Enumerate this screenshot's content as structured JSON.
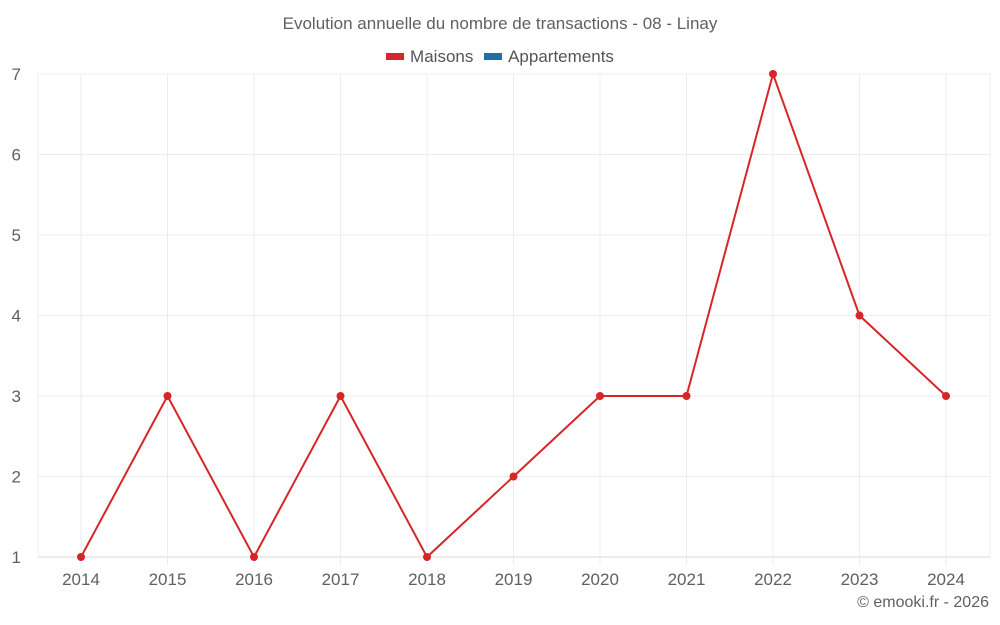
{
  "chart_data": {
    "type": "line",
    "title": "Evolution annuelle du nombre de transactions - 08 - Linay",
    "categories": [
      "2014",
      "2015",
      "2016",
      "2017",
      "2018",
      "2019",
      "2020",
      "2021",
      "2022",
      "2023",
      "2024"
    ],
    "series": [
      {
        "name": "Maisons",
        "color": "#d62728",
        "values": [
          1,
          3,
          1,
          3,
          1,
          2,
          3,
          3,
          7,
          4,
          3
        ]
      },
      {
        "name": "Appartements",
        "color": "#1f6ea8",
        "values": []
      }
    ],
    "xlabel": "",
    "ylabel": "",
    "ylim": [
      1,
      7
    ],
    "yticks": [
      1,
      2,
      3,
      4,
      5,
      6,
      7
    ],
    "grid": true,
    "legend_position": "top"
  },
  "header": {
    "title": "Evolution annuelle du nombre de transactions - 08 - Linay"
  },
  "legend": [
    {
      "label": "Maisons",
      "color": "#d62728"
    },
    {
      "label": "Appartements",
      "color": "#1f6ea8"
    }
  ],
  "footer": {
    "credit": "© emooki.fr - 2026"
  }
}
